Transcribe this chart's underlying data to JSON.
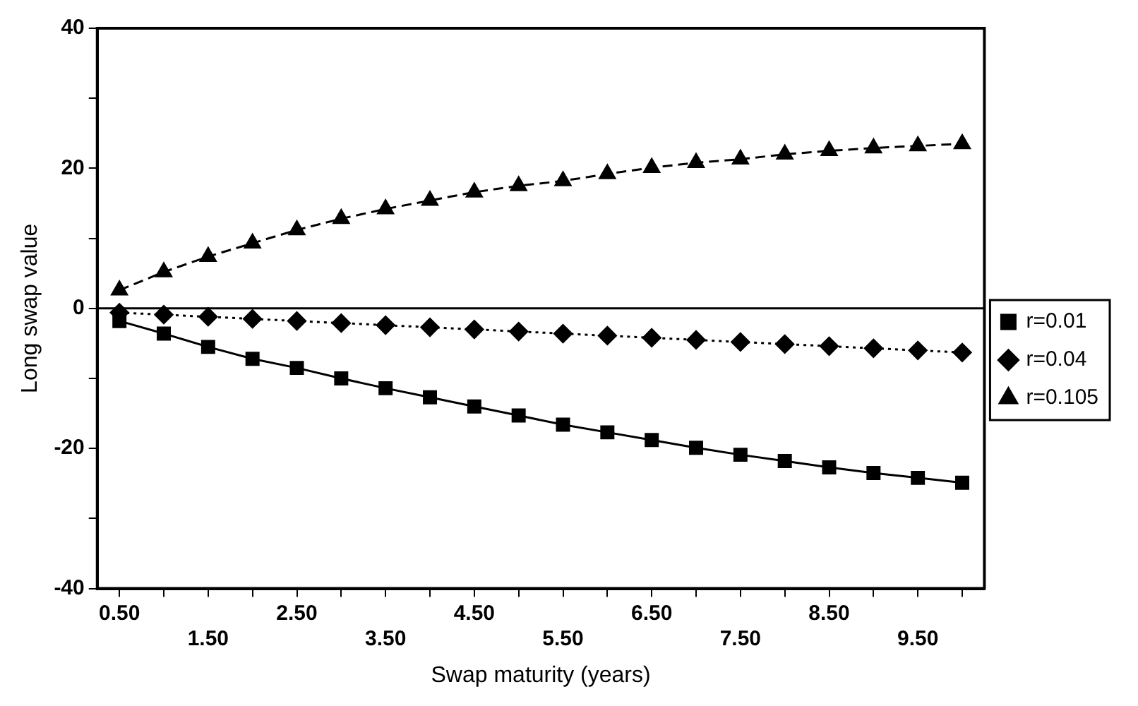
{
  "chart_data": {
    "type": "line",
    "xlabel": "Swap maturity (years)",
    "ylabel": "Long swap value",
    "categories": [
      "0.50",
      null,
      "1.50",
      null,
      "2.50",
      null,
      "3.50",
      null,
      "4.50",
      null,
      "5.50",
      null,
      "6.50",
      null,
      "7.50",
      null,
      "8.50",
      null,
      "9.50",
      null
    ],
    "series": [
      {
        "name": "r=0.01",
        "color": "#000000",
        "marker": "square",
        "line_style": "solid",
        "values": [
          -1.8,
          -3.6,
          -5.5,
          -7.2,
          -8.5,
          -10.0,
          -11.4,
          -12.7,
          -14.0,
          -15.3,
          -16.6,
          -17.7,
          -18.8,
          -19.9,
          -20.9,
          -21.8,
          -22.7,
          -23.5,
          -24.2,
          -24.9
        ]
      },
      {
        "name": "r=0.04",
        "color": "#000000",
        "marker": "diamond",
        "line_style": "dotted",
        "values": [
          -0.6,
          -0.9,
          -1.2,
          -1.5,
          -1.8,
          -2.1,
          -2.4,
          -2.7,
          -3.0,
          -3.3,
          -3.6,
          -3.9,
          -4.2,
          -4.5,
          -4.8,
          -5.1,
          -5.4,
          -5.7,
          -6.0,
          -6.3
        ]
      },
      {
        "name": "r=0.105",
        "color": "#000000",
        "marker": "triangle",
        "line_style": "dashed",
        "values": [
          2.6,
          5.2,
          7.4,
          9.3,
          11.2,
          12.8,
          14.2,
          15.4,
          16.6,
          17.5,
          18.2,
          19.2,
          20.1,
          20.8,
          21.3,
          22.0,
          22.5,
          22.9,
          23.2,
          23.5
        ]
      }
    ],
    "ylim": [
      -40,
      40
    ],
    "yticks": [
      -40,
      {
        "value": -30,
        "label": null
      },
      -20,
      {
        "value": -10,
        "label": null
      },
      0,
      {
        "value": 10,
        "label": null
      },
      20,
      {
        "value": 30,
        "label": null
      },
      40
    ],
    "ref_lines": [
      {
        "axis": "y",
        "value": 0,
        "color": "#000000"
      }
    ],
    "grid": false,
    "legend": "right"
  }
}
